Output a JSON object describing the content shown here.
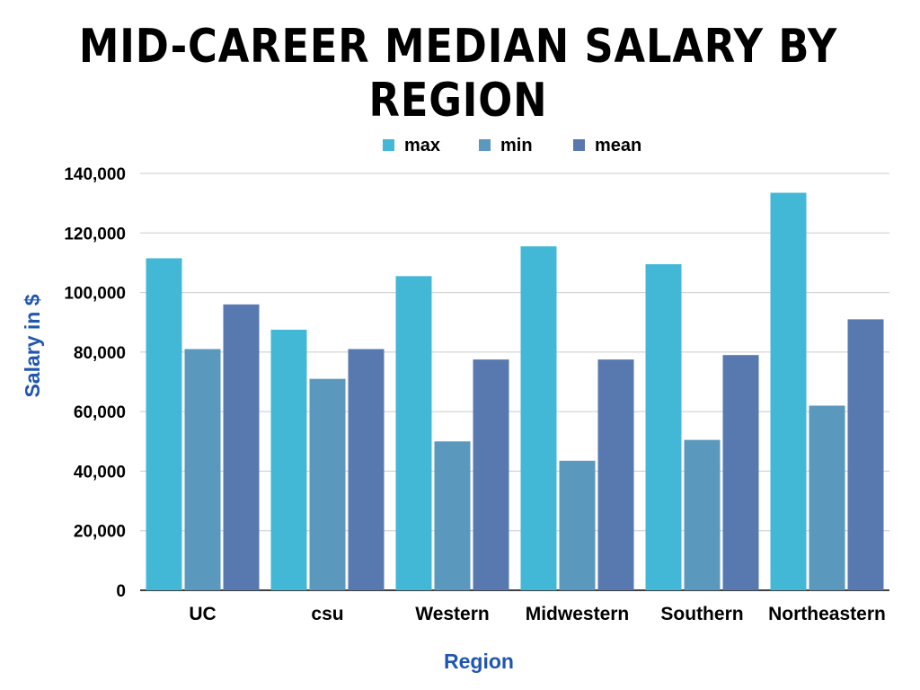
{
  "chart_data": {
    "type": "bar",
    "title_lines": [
      "MID-CAREER MEDIAN SALARY BY",
      "REGION"
    ],
    "xlabel": "Region",
    "ylabel": "Salary in $",
    "ylim": [
      0,
      140000
    ],
    "yticks": [
      0,
      20000,
      40000,
      60000,
      80000,
      100000,
      120000,
      140000
    ],
    "ytick_labels": [
      "0",
      "20,000",
      "40,000",
      "60,000",
      "80,000",
      "100,000",
      "120,000",
      "140,000"
    ],
    "grid": true,
    "legend_position": "top",
    "categories": [
      "UC",
      "csu",
      "Western",
      "Midwestern",
      "Southern",
      "Northeastern"
    ],
    "series": [
      {
        "name": "max",
        "color": "#43b8d6",
        "values": [
          111500,
          87500,
          105500,
          115500,
          109500,
          133500
        ]
      },
      {
        "name": "min",
        "color": "#5b98bd",
        "values": [
          81000,
          71000,
          50000,
          43500,
          50500,
          62000
        ]
      },
      {
        "name": "mean",
        "color": "#5779b0",
        "values": [
          96000,
          81000,
          77500,
          77500,
          79000,
          91000
        ]
      }
    ],
    "axis_label_color": "#1f56b0"
  }
}
